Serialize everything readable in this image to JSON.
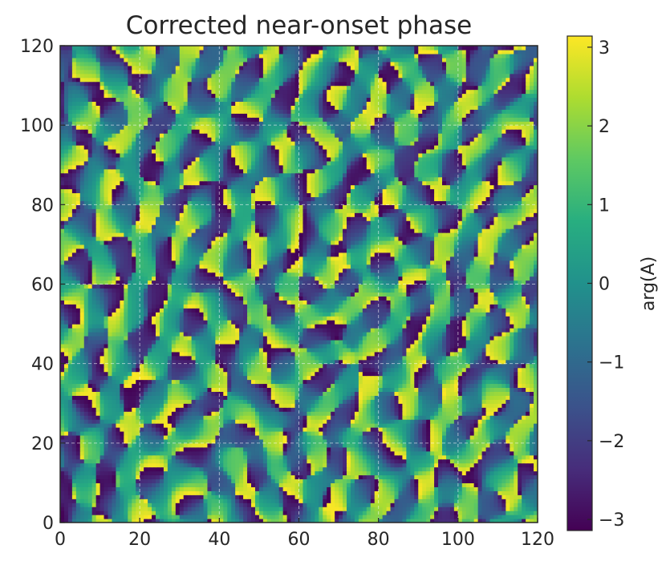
{
  "chart_data": {
    "type": "heatmap",
    "title": "Corrected near-onset phase",
    "xlabel": "",
    "ylabel": "",
    "xlim": [
      0,
      120
    ],
    "ylim": [
      0,
      120
    ],
    "x_ticks": [
      "0",
      "20",
      "40",
      "60",
      "80",
      "100",
      "120"
    ],
    "y_ticks": [
      "0",
      "20",
      "40",
      "60",
      "80",
      "100",
      "120"
    ],
    "grid": true,
    "colormap": "viridis",
    "colorbar": {
      "label": "arg(A)",
      "range": [
        -3.14159,
        3.14159
      ],
      "ticks": [
        "−3",
        "−2",
        "−1",
        "0",
        "1",
        "2",
        "3"
      ],
      "tick_values": [
        -3,
        -2,
        -1,
        0,
        1,
        2,
        3
      ]
    },
    "field_description_values": {
      "cells_per_axis": 120,
      "dominant_wavelength": 10
    }
  }
}
